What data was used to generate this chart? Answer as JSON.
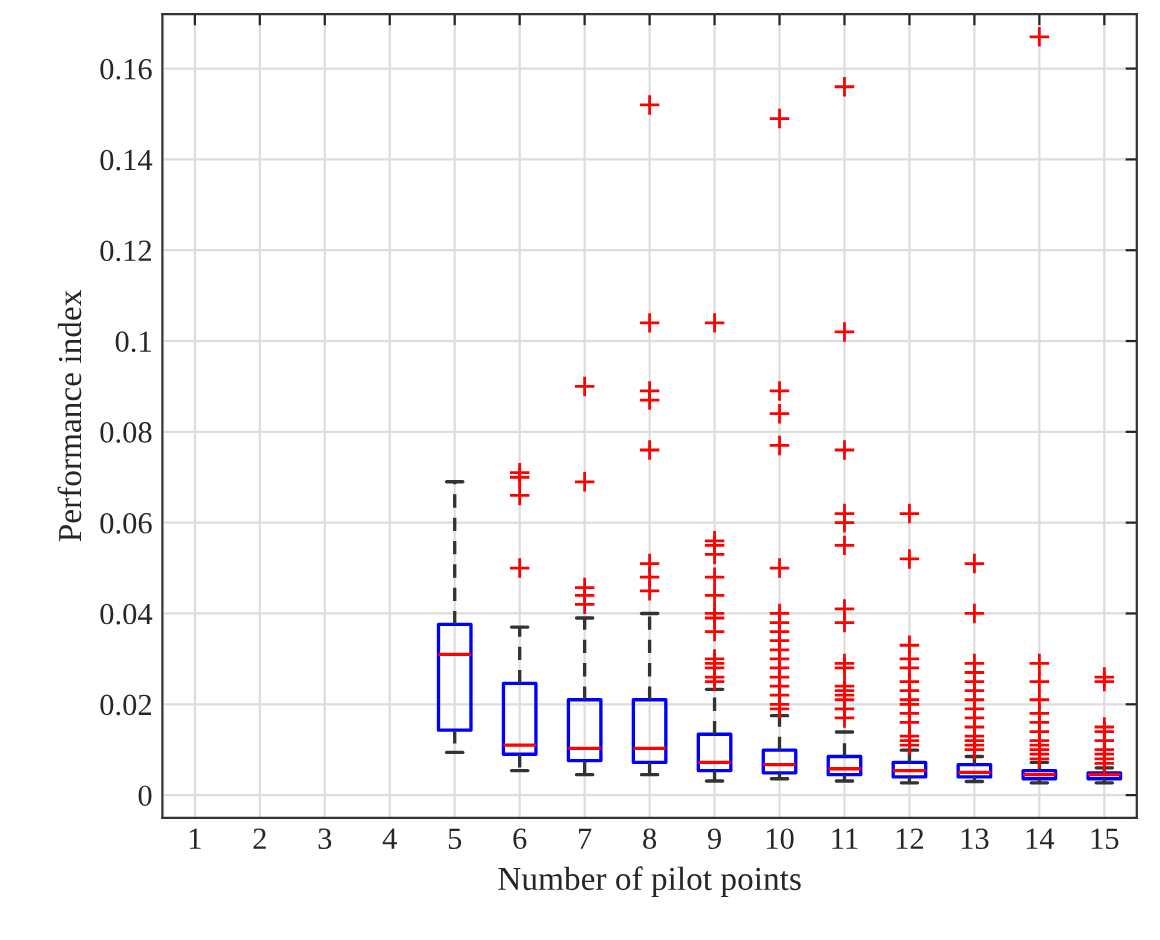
{
  "chart_data": {
    "type": "box",
    "xlabel": "Number of pilot points",
    "ylabel": "Performance index",
    "categories": [
      "1",
      "2",
      "3",
      "4",
      "5",
      "6",
      "7",
      "8",
      "9",
      "10",
      "11",
      "12",
      "13",
      "14",
      "15"
    ],
    "ylim": [
      -0.005,
      0.172
    ],
    "yticks": [
      0,
      0.02,
      0.04,
      0.06,
      0.08,
      {
        "value": 0.1,
        "label": "0.1"
      },
      0.12,
      0.14,
      0.16
    ],
    "grid": true,
    "marker": "cross",
    "color": "#0000ff",
    "boxes": [
      null,
      null,
      null,
      null,
      {
        "low": 0.0094,
        "q1": 0.0143,
        "median": 0.031,
        "q3": 0.0376,
        "high": 0.069
      },
      {
        "low": 0.0054,
        "q1": 0.009,
        "median": 0.011,
        "q3": 0.0246,
        "high": 0.037,
        "outliers": [
          0.071,
          0.07,
          0.066,
          0.05
        ]
      },
      {
        "low": 0.0045,
        "q1": 0.0076,
        "median": 0.0103,
        "q3": 0.021,
        "high": 0.039,
        "outliers": [
          0.09,
          0.069,
          0.0457,
          0.044,
          0.042
        ]
      },
      {
        "low": 0.0045,
        "q1": 0.0072,
        "median": 0.0103,
        "q3": 0.021,
        "high": 0.04,
        "outliers": [
          0.152,
          0.104,
          0.089,
          0.087,
          0.076,
          0.051,
          0.048,
          0.045
        ]
      },
      {
        "low": 0.0031,
        "q1": 0.0054,
        "median": 0.0072,
        "q3": 0.0134,
        "high": 0.0233,
        "outliers": [
          0.104,
          0.056,
          0.055,
          0.053,
          0.048,
          0.044,
          0.04,
          0.039,
          0.036,
          0.03,
          0.029,
          0.028,
          0.026,
          0.025
        ]
      },
      {
        "low": 0.0036,
        "q1": 0.0049,
        "median": 0.0067,
        "q3": 0.0099,
        "high": 0.0175,
        "outliers": [
          0.149,
          0.089,
          0.084,
          0.077,
          0.05,
          0.04,
          0.038,
          0.036,
          0.034,
          0.032,
          0.03,
          0.028,
          0.026,
          0.024,
          0.022,
          0.02,
          0.019
        ]
      },
      {
        "low": 0.0031,
        "q1": 0.0045,
        "median": 0.0058,
        "q3": 0.0085,
        "high": 0.0139,
        "outliers": [
          0.156,
          0.102,
          0.076,
          0.062,
          0.06,
          0.055,
          0.041,
          0.038,
          0.029,
          0.028,
          0.024,
          0.023,
          0.022,
          0.021,
          0.019,
          0.017
        ]
      },
      {
        "low": 0.0027,
        "q1": 0.004,
        "median": 0.0054,
        "q3": 0.0072,
        "high": 0.0099,
        "outliers": [
          0.062,
          0.052,
          0.033,
          0.03,
          0.028,
          0.025,
          0.023,
          0.021,
          0.02,
          0.018,
          0.016,
          0.013,
          0.012,
          0.011
        ]
      },
      {
        "low": 0.003,
        "q1": 0.004,
        "median": 0.005,
        "q3": 0.0067,
        "high": 0.0085,
        "outliers": [
          0.051,
          0.04,
          0.029,
          0.027,
          0.025,
          0.023,
          0.021,
          0.019,
          0.017,
          0.015,
          0.013,
          0.012,
          0.011,
          0.01
        ]
      },
      {
        "low": 0.0027,
        "q1": 0.0036,
        "median": 0.0045,
        "q3": 0.0054,
        "high": 0.0072,
        "outliers": [
          0.167,
          0.029,
          0.025,
          0.021,
          0.018,
          0.016,
          0.014,
          0.012,
          0.011,
          0.01,
          0.009,
          0.008
        ]
      },
      {
        "low": 0.0027,
        "q1": 0.0036,
        "median": 0.0045,
        "q3": 0.0049,
        "high": 0.006,
        "outliers": [
          0.026,
          0.025,
          0.015,
          0.014,
          0.012,
          0.01,
          0.009,
          0.008,
          0.007
        ]
      }
    ]
  }
}
